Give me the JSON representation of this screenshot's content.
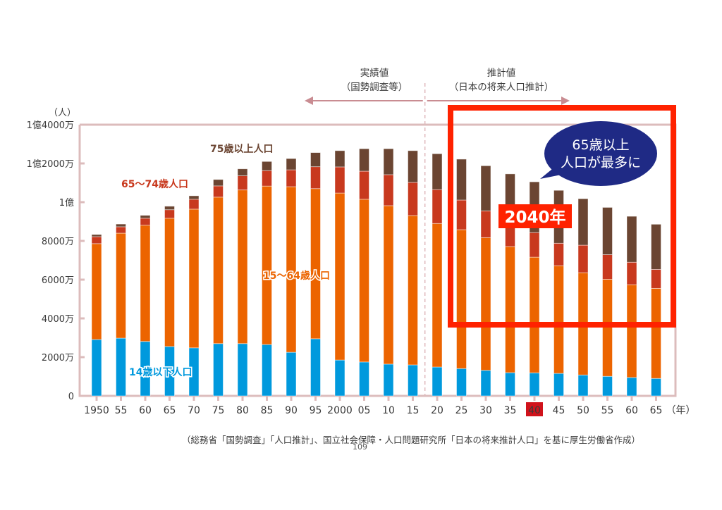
{
  "chart_data": {
    "type": "bar",
    "stacked": true,
    "title": "",
    "ylabel": "（人）",
    "xlabel": "（年）",
    "ylim": [
      0,
      14000
    ],
    "yunit": "万人",
    "yticks": [
      {
        "value": 0,
        "label": "0"
      },
      {
        "value": 2000,
        "label": "2000万"
      },
      {
        "value": 4000,
        "label": "4000万"
      },
      {
        "value": 6000,
        "label": "6000万"
      },
      {
        "value": 8000,
        "label": "8000万"
      },
      {
        "value": 10000,
        "label": "1億"
      },
      {
        "value": 12000,
        "label": "1億2000万"
      },
      {
        "value": 14000,
        "label": "1億4000万"
      }
    ],
    "categories": [
      "1950",
      "55",
      "60",
      "65",
      "70",
      "75",
      "80",
      "85",
      "90",
      "95",
      "2000",
      "05",
      "10",
      "15",
      "20",
      "25",
      "30",
      "35",
      "40",
      "45",
      "50",
      "55",
      "60",
      "65"
    ],
    "highlighted_category": "40",
    "grid": false,
    "series": [
      {
        "name": "14歳以下人口",
        "color": "#0099dd",
        "values": [
          2910,
          2980,
          2810,
          2550,
          2480,
          2700,
          2700,
          2650,
          2250,
          2950,
          1850,
          1750,
          1640,
          1600,
          1490,
          1410,
          1320,
          1200,
          1190,
          1160,
          1080,
          1010,
          950,
          900
        ]
      },
      {
        "name": "15〜64歳人口",
        "color": "#ec6400",
        "values": [
          4950,
          5420,
          6000,
          6620,
          7160,
          7560,
          7930,
          8180,
          8550,
          7750,
          8620,
          8400,
          8180,
          7710,
          7410,
          7170,
          6850,
          6510,
          5970,
          5560,
          5280,
          5010,
          4790,
          4650
        ]
      },
      {
        "name": "65〜74歳人口",
        "color": "#c8391e",
        "values": [
          360,
          330,
          360,
          440,
          510,
          580,
          730,
          800,
          870,
          1130,
          1350,
          1450,
          1600,
          1710,
          1750,
          1530,
          1380,
          1100,
          1270,
          1160,
          1420,
          1270,
          1160,
          980
        ]
      },
      {
        "name": "75歳以上人口",
        "color": "#6b4532",
        "values": [
          110,
          140,
          150,
          180,
          180,
          330,
          360,
          470,
          580,
          730,
          840,
          1160,
          1340,
          1640,
          1850,
          2110,
          2330,
          2650,
          2620,
          2730,
          2400,
          2440,
          2370,
          2330
        ]
      }
    ],
    "series_label_colors": [
      "#0099dd",
      "#ec6400",
      "#c8391e",
      "#6b4532"
    ],
    "period_divider_after": "15",
    "periods": [
      {
        "line1": "実績値",
        "line2": "（国勢調査等）"
      },
      {
        "line1": "推計値",
        "line2": "（日本の将来人口推計）"
      }
    ],
    "annotations": {
      "callout": {
        "line1": "65歳以上",
        "line2": "人口が最多に",
        "color": "#1f2a85"
      },
      "year_badge": {
        "text": "2040年",
        "color": "#ff2200"
      },
      "highlight_box_color": "#ff2200"
    }
  },
  "colors": {
    "axis": "#dcbcbc",
    "arrow": "#c98c92",
    "x_highlight_bg": "#d0121b"
  },
  "source_text": "（総務省「国勢調査」「人口推計」、国立社会保障・人口問題研究所「日本の将来推計人口」を基に厚生労働省作成）",
  "page_number": "109"
}
